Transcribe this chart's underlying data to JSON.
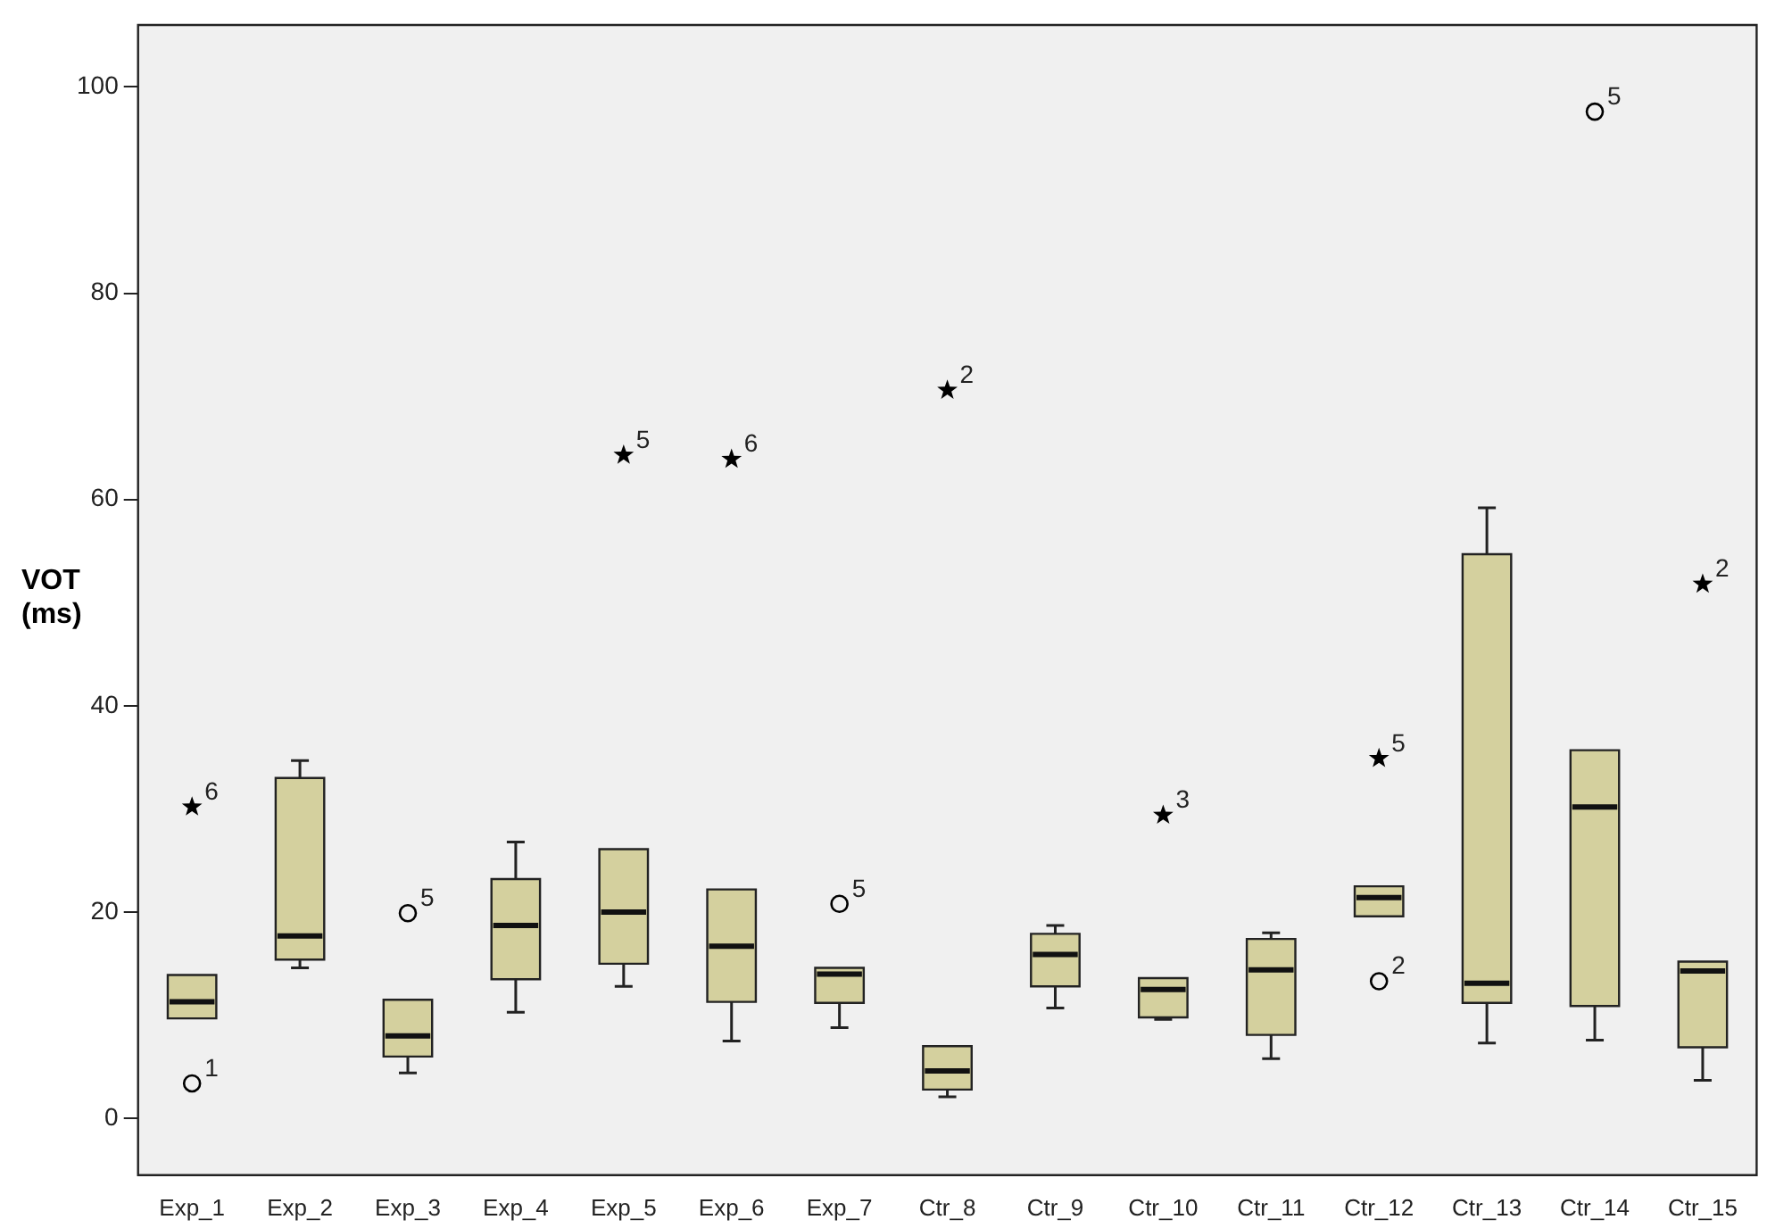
{
  "chart_data": {
    "type": "box",
    "ylabel": "VOT (ms)",
    "categories": [
      "Exp_1",
      "Exp_2",
      "Exp_3",
      "Exp_4",
      "Exp_5",
      "Exp_6",
      "Exp_7",
      "Ctr_8",
      "Ctr_9",
      "Ctr_10",
      "Ctr_11",
      "Ctr_12",
      "Ctr_13",
      "Ctr_14",
      "Ctr_15"
    ],
    "ylim": [
      -5.5,
      106
    ],
    "yticks": [
      0,
      20,
      40,
      60,
      80,
      100
    ],
    "legend": false,
    "series": [
      {
        "type": "box",
        "color": "#d4d09e",
        "boxes": [
          {
            "low": 9.7,
            "q1": 9.7,
            "median": 11.3,
            "q3": 13.9,
            "high": 13.9
          },
          {
            "low": 14.6,
            "q1": 15.4,
            "median": 17.7,
            "q3": 33.0,
            "high": 34.7
          },
          {
            "low": 4.4,
            "q1": 6.0,
            "median": 8.0,
            "q3": 11.5,
            "high": 11.5
          },
          {
            "low": 10.3,
            "q1": 13.5,
            "median": 18.7,
            "q3": 23.2,
            "high": 26.8
          },
          {
            "low": 12.8,
            "q1": 15.0,
            "median": 20.0,
            "q3": 26.1,
            "high": 26.1
          },
          {
            "low": 7.5,
            "q1": 11.3,
            "median": 16.7,
            "q3": 22.2,
            "high": 22.2
          },
          {
            "low": 8.8,
            "q1": 11.2,
            "median": 14.0,
            "q3": 14.6,
            "high": 14.6
          },
          {
            "low": 2.1,
            "q1": 2.8,
            "median": 4.6,
            "q3": 7.0,
            "high": 7.0
          },
          {
            "low": 10.7,
            "q1": 12.8,
            "median": 15.9,
            "q3": 17.9,
            "high": 18.7
          },
          {
            "low": 9.6,
            "q1": 9.8,
            "median": 12.5,
            "q3": 13.6,
            "high": 13.6
          },
          {
            "low": 5.8,
            "q1": 8.1,
            "median": 14.4,
            "q3": 17.4,
            "high": 18.0
          },
          {
            "low": 19.6,
            "q1": 19.6,
            "median": 21.4,
            "q3": 22.5,
            "high": 22.5
          },
          {
            "low": 7.3,
            "q1": 11.2,
            "median": 13.1,
            "q3": 54.7,
            "high": 59.2
          },
          {
            "low": 7.6,
            "q1": 10.9,
            "median": 30.2,
            "q3": 35.7,
            "high": 35.7
          },
          {
            "low": 3.7,
            "q1": 6.9,
            "median": 14.3,
            "q3": 15.2,
            "high": 15.2
          }
        ]
      },
      {
        "type": "scatter",
        "color": "#000000",
        "marker": "circle",
        "x": [
          "Exp_1",
          "Exp_3",
          "Exp_7",
          "Ctr_12",
          "Ctr_14"
        ],
        "values": [
          3.4,
          19.9,
          20.8,
          13.3,
          97.6
        ]
      },
      {
        "type": "scatter",
        "color": "#000000",
        "marker": "star",
        "x": [
          "Exp_1",
          "Exp_5",
          "Exp_6",
          "Ctr_8",
          "Ctr_10",
          "Ctr_12",
          "Ctr_15"
        ],
        "values": [
          30.2,
          64.3,
          63.9,
          70.6,
          29.4,
          34.9,
          51.8
        ]
      }
    ],
    "annotations": [
      {
        "text": "1",
        "x": "Exp_1",
        "y": 3.4
      },
      {
        "text": "5",
        "x": "Exp_3",
        "y": 19.9
      },
      {
        "text": "5",
        "x": "Exp_7",
        "y": 20.8
      },
      {
        "text": "2",
        "x": "Ctr_12",
        "y": 13.3
      },
      {
        "text": "5",
        "x": "Ctr_14",
        "y": 97.6
      },
      {
        "text": "6",
        "x": "Exp_1",
        "y": 30.2
      },
      {
        "text": "5",
        "x": "Exp_5",
        "y": 64.3
      },
      {
        "text": "6",
        "x": "Exp_6",
        "y": 63.9
      },
      {
        "text": "2",
        "x": "Ctr_8",
        "y": 70.6
      },
      {
        "text": "3",
        "x": "Ctr_10",
        "y": 29.4
      },
      {
        "text": "5",
        "x": "Ctr_12",
        "y": 34.9
      },
      {
        "text": "2",
        "x": "Ctr_15",
        "y": 51.8
      }
    ]
  }
}
